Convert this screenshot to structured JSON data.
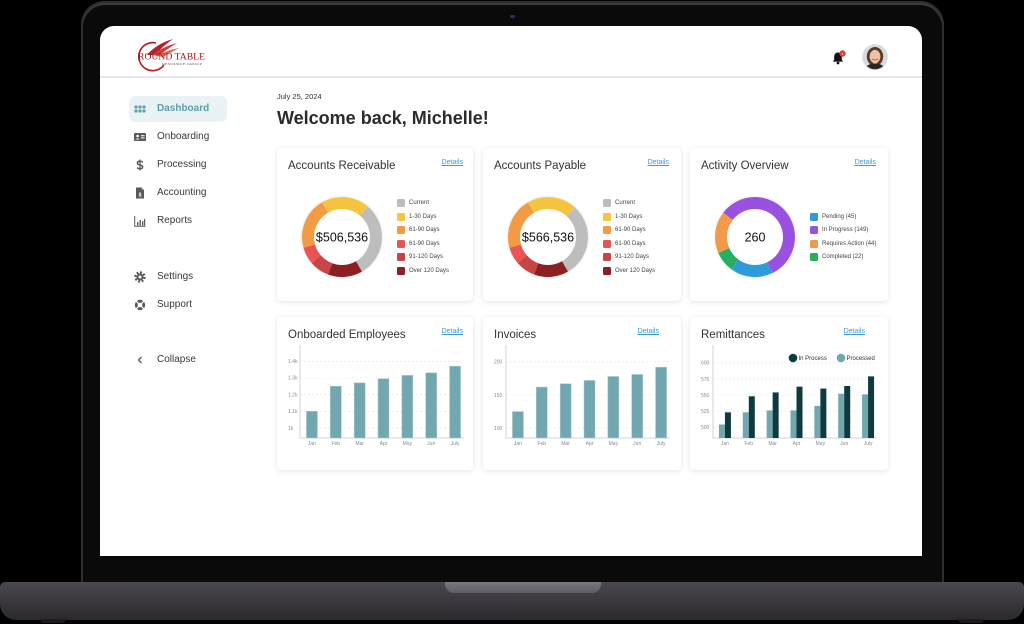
{
  "header": {
    "logo": {
      "name": "ROUND TABLE",
      "tagline": "RESOURCE GROUP"
    },
    "notifications": {
      "icon": "bell-icon",
      "badge_count": "1"
    },
    "profile": {
      "icon": "user-avatar-photo"
    }
  },
  "sidebar": {
    "items": [
      {
        "label": "Dashboard",
        "icon": "grid-icon",
        "active": true
      },
      {
        "label": "Onboarding",
        "icon": "id-card-icon"
      },
      {
        "label": "Processing",
        "icon": "dollar-icon"
      },
      {
        "label": "Accounting",
        "icon": "invoice-document-icon"
      },
      {
        "label": "Reports",
        "icon": "bar-chart-icon"
      },
      {
        "label": "Settings",
        "icon": "gear-icon"
      },
      {
        "label": "Support",
        "icon": "lifebuoy-icon"
      },
      {
        "label": "Collapse",
        "icon": "chevron-left-icon"
      }
    ]
  },
  "main": {
    "date": "July 25, 2024",
    "greeting": "Welcome back, Michelle!"
  },
  "cards": [
    {
      "title": "Accounts Receivable",
      "details": "Details"
    },
    {
      "title": "Accounts Payable",
      "details": "Details"
    },
    {
      "title": "Activity Overview",
      "details": "Details"
    },
    {
      "title": "Onboarded Employees",
      "details": "Details"
    },
    {
      "title": "Invoices",
      "details": "Details"
    },
    {
      "title": "Remittances",
      "details": "Details"
    }
  ],
  "colors": {
    "accent": "#5e9ea8",
    "link": "#3d9bd6",
    "bar": "#73a7b0",
    "bar_dark": "#0f3a40",
    "logo_red": "#a3161f"
  },
  "chart_data": [
    {
      "type": "pie",
      "variant": "donut",
      "title": "Accounts Receivable",
      "center_label": "$506,536",
      "categories": [
        "Current",
        "1-30 Days",
        "61-90 Days",
        "61-90 Days",
        "91-120 Days",
        "Over 120 Days"
      ],
      "values": [
        30.5,
        19.5,
        21,
        7,
        8,
        14
      ],
      "value_unit": "estimated % share of ring",
      "colors": [
        "#bdbdbd",
        "#f5c542",
        "#f29b44",
        "#ea5455",
        "#c94444",
        "#8b1f24"
      ],
      "start_angle": 150,
      "direction": "ccw",
      "legend_position": "right"
    },
    {
      "type": "pie",
      "variant": "donut",
      "title": "Accounts Payable",
      "center_label": "$566,536",
      "categories": [
        "Current",
        "1-30 Days",
        "61-90 Days",
        "61-90 Days",
        "91-120 Days",
        "Over 120 Days"
      ],
      "values": [
        30,
        20,
        21,
        7,
        8,
        14
      ],
      "value_unit": "estimated % share of ring",
      "colors": [
        "#bdbdbd",
        "#f5c542",
        "#f29b44",
        "#ea5455",
        "#c94444",
        "#8b1f24"
      ],
      "start_angle": 150,
      "direction": "ccw",
      "legend_position": "right"
    },
    {
      "type": "pie",
      "variant": "donut",
      "title": "Activity Overview",
      "center_label": "260",
      "categories": [
        "Pending",
        "In Progress",
        "Requires Action",
        "Completed"
      ],
      "legend": [
        "Pending (45)",
        "In Progress (149)",
        "Requires Action (44)",
        "Completed (22)"
      ],
      "values": [
        45,
        149,
        44,
        22
      ],
      "colors": [
        "#2d9cdb",
        "#9b51e0",
        "#f2994a",
        "#27ae60"
      ],
      "start_angle": 216,
      "direction": "ccw",
      "legend_position": "right"
    },
    {
      "type": "bar",
      "title": "Onboarded Employees",
      "categories": [
        "Jan",
        "Feb",
        "Mar",
        "Apr",
        "May",
        "Jun",
        "July"
      ],
      "series": [
        {
          "name": "Onboarded Employees",
          "values": [
            1100,
            1250,
            1270,
            1295,
            1315,
            1330,
            1370
          ],
          "color": "#73a7b0"
        }
      ],
      "yticks": [
        1000,
        1100,
        1200,
        1300,
        1400
      ],
      "ytick_labels": [
        "1k",
        "1.1k",
        "1.2k",
        "1.3k",
        "1.4k"
      ],
      "ylim": [
        940,
        1455
      ],
      "xlabel": "",
      "ylabel": "",
      "grid": true
    },
    {
      "type": "bar",
      "title": "Invoices",
      "categories": [
        "Jan",
        "Feb",
        "Mar",
        "Apr",
        "May",
        "Jun",
        "July"
      ],
      "series": [
        {
          "name": "Invoices",
          "values": [
            125,
            162,
            167,
            172,
            178,
            181,
            192
          ],
          "color": "#73a7b0"
        }
      ],
      "yticks": [
        100,
        150,
        200
      ],
      "ytick_labels": [
        "100",
        "150",
        "200"
      ],
      "ylim": [
        85,
        215
      ],
      "xlabel": "",
      "ylabel": "",
      "grid": true
    },
    {
      "type": "bar",
      "title": "Remittances",
      "categories": [
        "Jan",
        "Feb",
        "Mar",
        "Apr",
        "May",
        "Jun",
        "July"
      ],
      "series": [
        {
          "name": "Processed",
          "values": [
            504,
            523,
            526,
            526,
            533,
            552,
            551
          ],
          "color": "#73a7b0"
        },
        {
          "name": "In Process",
          "values": [
            523,
            548,
            554,
            563,
            560,
            564,
            579
          ],
          "color": "#0f3a40"
        }
      ],
      "legend": [
        "In Process",
        "Processed"
      ],
      "legend_position": "top-right",
      "yticks": [
        500,
        525,
        550,
        575,
        600
      ],
      "ytick_labels": [
        "500",
        "525",
        "550",
        "575",
        "600"
      ],
      "ylim": [
        483,
        617
      ],
      "xlabel": "",
      "ylabel": "",
      "grid": true
    }
  ]
}
